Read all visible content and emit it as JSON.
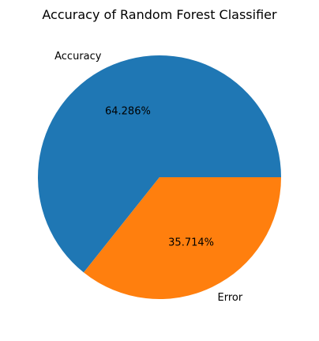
{
  "chart_data": {
    "type": "pie",
    "title": "Accuracy of Random Forest Classifier",
    "slices": [
      {
        "label": "Accuracy",
        "value": 64.286,
        "pct_label": "64.286%",
        "color": "#1f77b4"
      },
      {
        "label": "Error",
        "value": 35.714,
        "pct_label": "35.714%",
        "color": "#ff7f0e"
      }
    ],
    "start_angle_deg": 0,
    "direction": "counterclockwise",
    "legend": "none"
  }
}
